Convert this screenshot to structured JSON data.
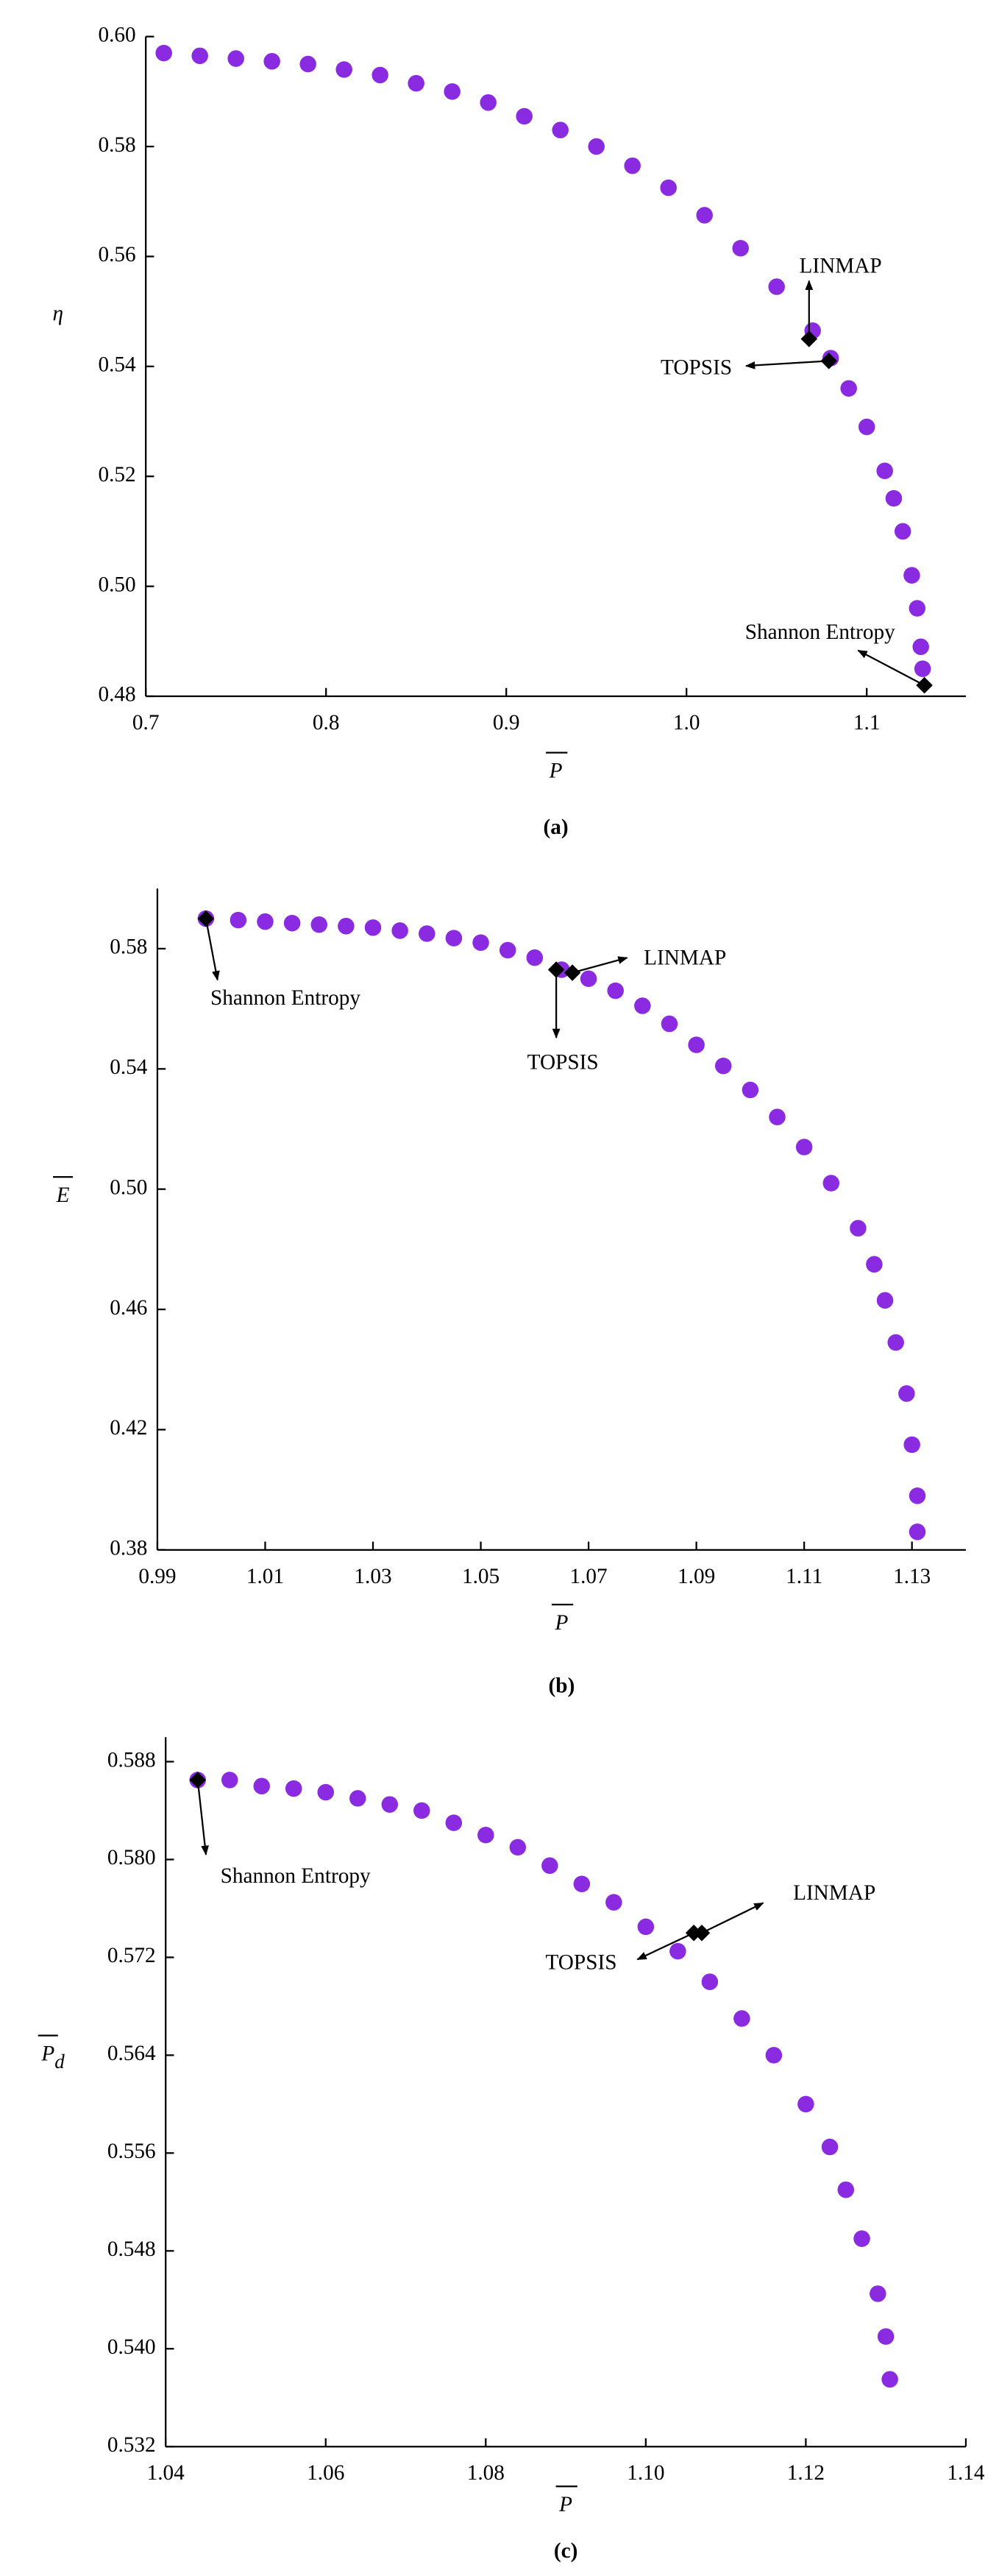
{
  "chart_data": [
    {
      "type": "scatter",
      "panel_label": "(a)",
      "xlabel": "P",
      "ylabel": "η",
      "color": "#8a2be2",
      "xlim": [
        0.7,
        1.155
      ],
      "ylim": [
        0.48,
        0.6
      ],
      "xticks": [
        0.7,
        0.8,
        0.9,
        {
          "value": 1.0,
          "label": "1.0"
        },
        1.1
      ],
      "yticks": [
        0.48,
        {
          "value": 0.5,
          "label": "0.50"
        },
        0.52,
        0.54,
        0.56,
        0.58,
        {
          "value": 0.6,
          "label": "0.60"
        }
      ],
      "x": [
        0.71,
        0.73,
        0.75,
        0.77,
        0.79,
        0.81,
        0.83,
        0.85,
        0.87,
        0.89,
        0.91,
        0.93,
        0.95,
        0.97,
        0.99,
        1.01,
        1.03,
        1.05,
        1.07,
        1.08,
        1.09,
        1.1,
        1.11,
        1.115,
        1.12,
        1.125,
        1.128,
        1.13,
        1.131
      ],
      "values": [
        0.597,
        0.5965,
        0.596,
        0.5955,
        0.595,
        0.594,
        0.593,
        0.5915,
        0.59,
        0.588,
        0.5855,
        0.583,
        0.58,
        0.5765,
        0.5725,
        0.5675,
        0.5615,
        0.5545,
        0.5465,
        0.5415,
        0.536,
        0.529,
        0.521,
        0.516,
        0.51,
        0.502,
        0.496,
        0.489,
        0.485
      ],
      "annotations": [
        {
          "text": "LINMAP",
          "x": 1.068,
          "y": 0.545
        },
        {
          "text": "TOPSIS",
          "x": 1.079,
          "y": 0.541
        },
        {
          "text": "Shannon Entropy",
          "x": 1.132,
          "y": 0.482
        }
      ]
    },
    {
      "type": "scatter",
      "panel_label": "(b)",
      "xlabel": "P",
      "ylabel": "E",
      "color": "#8a2be2",
      "xlim": [
        0.99,
        1.14
      ],
      "ylim": [
        0.38,
        0.6
      ],
      "xticks": [
        0.99,
        1.01,
        1.03,
        1.05,
        1.07,
        1.09,
        1.11,
        1.13
      ],
      "yticks": [
        0.38,
        0.42,
        0.46,
        {
          "value": 0.5,
          "label": "0.50"
        },
        0.54,
        0.58
      ],
      "x": [
        0.999,
        1.005,
        1.01,
        1.015,
        1.02,
        1.025,
        1.03,
        1.035,
        1.04,
        1.045,
        1.05,
        1.055,
        1.06,
        1.065,
        1.07,
        1.075,
        1.08,
        1.085,
        1.09,
        1.095,
        1.1,
        1.105,
        1.11,
        1.115,
        1.12,
        1.123,
        1.125,
        1.127,
        1.129,
        1.13,
        1.131,
        1.131
      ],
      "values": [
        0.59,
        0.5895,
        0.589,
        0.5885,
        0.588,
        0.5875,
        0.587,
        0.586,
        0.585,
        0.5835,
        0.582,
        0.5795,
        0.577,
        0.573,
        0.57,
        0.566,
        0.561,
        0.555,
        0.548,
        0.541,
        0.533,
        0.524,
        0.514,
        0.502,
        0.487,
        0.475,
        0.463,
        0.449,
        0.432,
        0.415,
        0.398,
        0.386
      ],
      "annotations": [
        {
          "text": "Shannon Entropy",
          "x": 0.999,
          "y": 0.59
        },
        {
          "text": "LINMAP",
          "x": 1.067,
          "y": 0.572
        },
        {
          "text": "TOPSIS",
          "x": 1.064,
          "y": 0.573
        }
      ]
    },
    {
      "type": "scatter",
      "panel_label": "(c)",
      "xlabel": "P",
      "ylabel": "P",
      "ylabel_subscript": "d",
      "color": "#8a2be2",
      "xlim": [
        1.04,
        1.14
      ],
      "ylim": [
        0.532,
        0.59
      ],
      "xticks": [
        {
          "value": 1.04,
          "label": "1.04"
        },
        {
          "value": 1.06,
          "label": "1.06"
        },
        {
          "value": 1.08,
          "label": "1.08"
        },
        {
          "value": 1.1,
          "label": "1.10"
        },
        1.12,
        1.14
      ],
      "yticks": [
        0.532,
        {
          "value": 0.54,
          "label": "0.540"
        },
        0.548,
        0.556,
        0.564,
        0.572,
        {
          "value": 0.58,
          "label": "0.580"
        },
        0.588
      ],
      "x": [
        1.044,
        1.048,
        1.052,
        1.056,
        1.06,
        1.064,
        1.068,
        1.072,
        1.076,
        1.08,
        1.084,
        1.088,
        1.092,
        1.096,
        1.1,
        1.104,
        1.108,
        1.112,
        1.116,
        1.12,
        1.123,
        1.125,
        1.127,
        1.129,
        1.13,
        1.1305
      ],
      "values": [
        0.5865,
        0.5865,
        0.586,
        0.5858,
        0.5855,
        0.585,
        0.5845,
        0.584,
        0.583,
        0.582,
        0.581,
        0.5795,
        0.578,
        0.5765,
        0.5745,
        0.5725,
        0.57,
        0.567,
        0.564,
        0.56,
        0.5565,
        0.553,
        0.549,
        0.5445,
        0.541,
        0.5375
      ],
      "annotations": [
        {
          "text": "Shannon Entropy",
          "x": 1.044,
          "y": 0.5865
        },
        {
          "text": "LINMAP",
          "x": 1.107,
          "y": 0.574
        },
        {
          "text": "TOPSIS",
          "x": 1.106,
          "y": 0.574
        }
      ]
    }
  ]
}
